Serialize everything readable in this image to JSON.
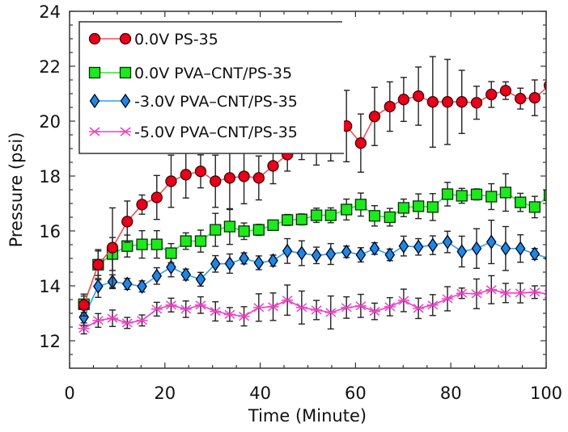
{
  "chart_data": {
    "type": "line",
    "title": "",
    "xlabel": "Time (Minute)",
    "ylabel": "Pressure (psi)",
    "xlim": [
      0,
      100
    ],
    "ylim": [
      11,
      24
    ],
    "xticks": [
      0,
      20,
      40,
      60,
      80,
      100
    ],
    "yticks": [
      12,
      14,
      16,
      18,
      20,
      22,
      24
    ],
    "grid": false,
    "legend_position": "top-left",
    "x": [
      3.0,
      6.0,
      9.0,
      12.1,
      15.2,
      18.3,
      21.3,
      24.4,
      27.5,
      30.6,
      33.6,
      36.6,
      39.7,
      42.7,
      45.7,
      48.7,
      51.8,
      54.8,
      58.1,
      61.1,
      64.0,
      67.2,
      70.1,
      73.2,
      76.2,
      79.3,
      82.3,
      85.4,
      88.5,
      91.5,
      94.6,
      97.6,
      100.7
    ],
    "series": [
      {
        "name": "0.0V PS-35",
        "color": "#e8001c",
        "line_color": "#f0505a",
        "marker": "circle",
        "values": [
          13.3,
          14.77,
          15.39,
          16.34,
          16.96,
          17.22,
          17.81,
          18.05,
          18.17,
          17.81,
          17.93,
          17.99,
          17.93,
          18.37,
          18.78,
          19.1,
          19.3,
          19.5,
          19.82,
          19.2,
          20.17,
          20.53,
          20.79,
          20.91,
          20.7,
          20.7,
          20.7,
          20.67,
          20.97,
          21.11,
          20.82,
          20.85,
          21.3
        ],
        "errors": [
          0.4,
          0.5,
          1.45,
          0.75,
          0.35,
          0.8,
          0.95,
          0.85,
          0.6,
          0.95,
          1.15,
          1.0,
          0.8,
          0.65,
          0.6,
          0.5,
          0.9,
          0.95,
          1.3,
          1.06,
          1.06,
          0.9,
          0.8,
          1.06,
          1.65,
          1.55,
          1.15,
          0.6,
          0.47,
          0.32,
          0.38,
          0.65,
          0
        ]
      },
      {
        "name": "0.0V PVA–CNT/PS-35",
        "color": "#1ee81e",
        "line_color": "#2ee82e",
        "marker": "square",
        "values": [
          13.33,
          14.77,
          15.16,
          15.45,
          15.51,
          15.51,
          15.19,
          15.63,
          15.63,
          16.04,
          16.16,
          15.99,
          16.04,
          16.21,
          16.4,
          16.42,
          16.57,
          16.57,
          16.78,
          16.96,
          16.55,
          16.5,
          16.84,
          16.9,
          16.87,
          17.34,
          17.28,
          17.33,
          17.25,
          17.4,
          17.04,
          16.87,
          17.3
        ],
        "errors": [
          0.3,
          0.55,
          0.6,
          0.4,
          0.5,
          0.5,
          0.35,
          0.3,
          0.4,
          0.6,
          0.65,
          0.3,
          0.2,
          0.15,
          0.2,
          0.2,
          0.26,
          0.27,
          0.38,
          0.42,
          0.37,
          0.32,
          0.32,
          0.45,
          0.49,
          0.43,
          0.27,
          0.2,
          0.47,
          0.68,
          0.33,
          0.39,
          0
        ]
      },
      {
        "name": "-3.0V PVA–CNT/PS-35",
        "color": "#1e88e0",
        "line_color": "#2aa0f0",
        "marker": "diamond",
        "values": [
          12.86,
          13.98,
          14.15,
          14.07,
          13.98,
          14.36,
          14.68,
          14.41,
          14.24,
          14.8,
          14.81,
          15.0,
          14.84,
          14.92,
          15.27,
          15.19,
          15.11,
          15.16,
          15.24,
          15.13,
          15.36,
          15.13,
          15.45,
          15.42,
          15.48,
          15.6,
          15.25,
          15.36,
          15.6,
          15.36,
          15.36,
          15.16,
          15.0
        ],
        "errors": [
          0.3,
          0.4,
          0.25,
          0.2,
          0.2,
          0.3,
          0.35,
          0.2,
          0.25,
          0.3,
          0.35,
          0.2,
          0.25,
          0.2,
          0.45,
          0.45,
          0.3,
          0.38,
          0.21,
          0.26,
          0.21,
          0.21,
          0.36,
          0.3,
          0.34,
          0.39,
          0.56,
          0.72,
          0.79,
          0.8,
          0.5,
          0.2,
          0
        ]
      },
      {
        "name": "-5.0V PVA–CNT/PS-35",
        "color": "#f040c8",
        "line_color": "#f040c8",
        "marker": "x",
        "values": [
          12.45,
          12.74,
          12.82,
          12.65,
          12.74,
          13.15,
          13.3,
          13.15,
          13.3,
          13.07,
          12.96,
          12.89,
          13.21,
          13.24,
          13.48,
          13.21,
          13.12,
          13.03,
          13.21,
          13.27,
          13.07,
          13.24,
          13.47,
          13.18,
          13.3,
          13.53,
          13.73,
          13.71,
          13.86,
          13.74,
          13.74,
          13.77,
          13.7
        ],
        "errors": [
          0.2,
          0.25,
          0.3,
          0.2,
          0.2,
          0.25,
          0.25,
          0.3,
          0.3,
          0.35,
          0.25,
          0.35,
          0.5,
          0.5,
          0.55,
          0.6,
          0.35,
          0.6,
          0.39,
          0.42,
          0.3,
          0.33,
          0.41,
          0.37,
          0.38,
          0.44,
          0.19,
          0.54,
          0.51,
          0.35,
          0.36,
          0.23,
          0
        ]
      }
    ]
  }
}
